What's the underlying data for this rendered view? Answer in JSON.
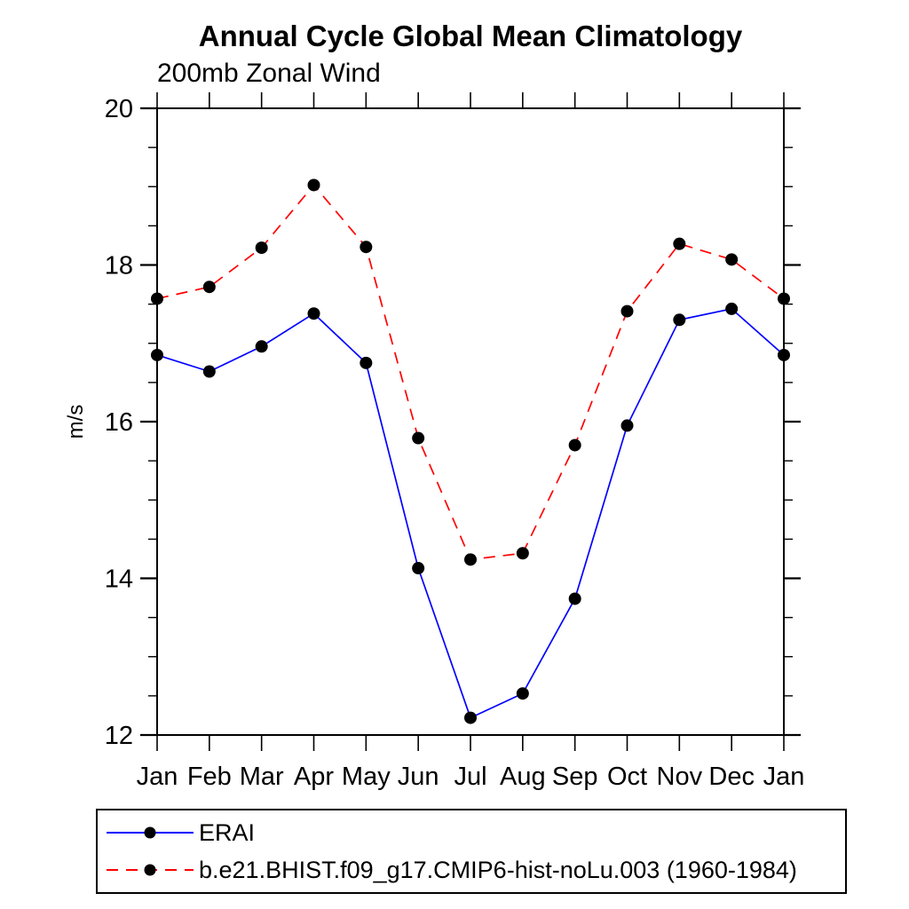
{
  "page": {
    "background": "#ffffff",
    "text_color": "#000000"
  },
  "chart_data": {
    "type": "line",
    "title": "Annual Cycle Global Mean Climatology",
    "subtitle": "200mb Zonal Wind",
    "xlabel": "",
    "ylabel": "m/s",
    "x_tick_labels": [
      "Jan",
      "Feb",
      "Mar",
      "Apr",
      "May",
      "Jun",
      "Jul",
      "Aug",
      "Sep",
      "Oct",
      "Nov",
      "Dec",
      "Jan"
    ],
    "ylim": [
      12,
      20
    ],
    "y_major_ticks": [
      12,
      14,
      16,
      18,
      20
    ],
    "y_minor_step": 0.5,
    "grid": false,
    "legend_position": "bottom-left-box",
    "marker": {
      "shape": "circle",
      "color": "#000000"
    },
    "series": [
      {
        "name": "ERAI",
        "color": "#0000ff",
        "line_style": "solid",
        "values": [
          16.85,
          16.64,
          16.96,
          17.38,
          16.75,
          14.13,
          12.22,
          12.53,
          13.74,
          15.95,
          17.3,
          17.44,
          16.85
        ]
      },
      {
        "name": "b.e21.BHIST.f09_g17.CMIP6-hist-noLu.003 (1960-1984)",
        "color": "#ff0000",
        "line_style": "dashed",
        "values": [
          17.57,
          17.72,
          18.22,
          19.02,
          18.23,
          15.79,
          14.24,
          14.32,
          15.7,
          17.41,
          18.27,
          18.07,
          17.57
        ]
      }
    ]
  }
}
